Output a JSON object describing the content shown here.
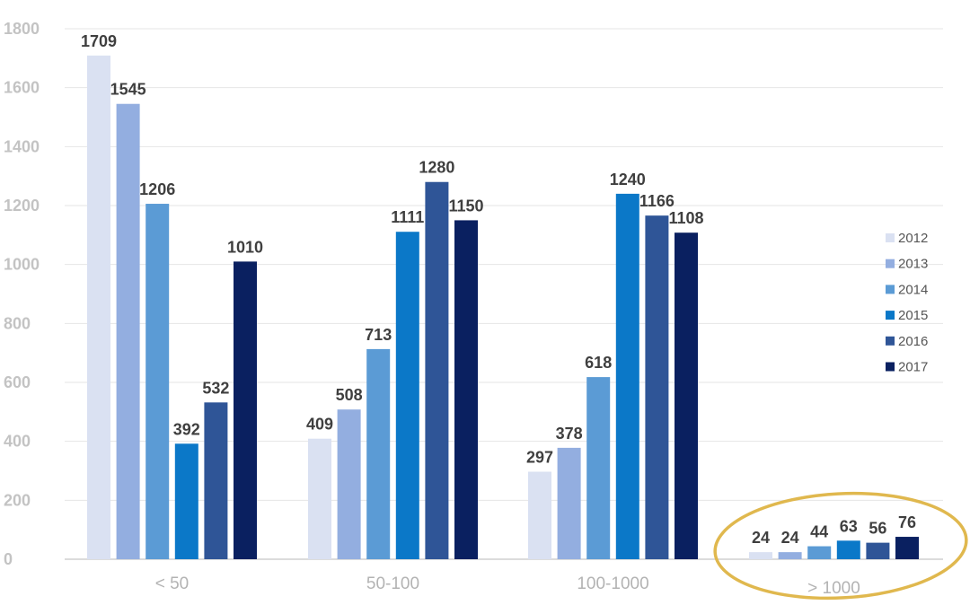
{
  "chart_data": {
    "type": "bar",
    "categories": [
      "< 50",
      "50-100",
      "100-1000",
      "> 1000"
    ],
    "series": [
      {
        "name": "2012",
        "values": [
          1709,
          409,
          297,
          24
        ]
      },
      {
        "name": "2013",
        "values": [
          1545,
          508,
          378,
          24
        ]
      },
      {
        "name": "2014",
        "values": [
          1206,
          713,
          618,
          44
        ]
      },
      {
        "name": "2015",
        "values": [
          392,
          1111,
          1240,
          63
        ]
      },
      {
        "name": "2016",
        "values": [
          532,
          1280,
          1166,
          56
        ]
      },
      {
        "name": "2017",
        "values": [
          1010,
          1150,
          1108,
          76
        ]
      }
    ],
    "ylim": [
      0,
      1800
    ],
    "yticks": [
      "0",
      "200",
      "400",
      "600",
      "800",
      "1000",
      "1200",
      "1400",
      "1600",
      "1800"
    ],
    "grid": true,
    "legend": "right",
    "colors": [
      "#dae1f2",
      "#93aee0",
      "#5b9bd5",
      "#0b78c8",
      "#2f5597",
      "#0a2060"
    ],
    "annotation": "ellipse highlighting > 1000 group",
    "annotation_color": "#e0b84e"
  }
}
